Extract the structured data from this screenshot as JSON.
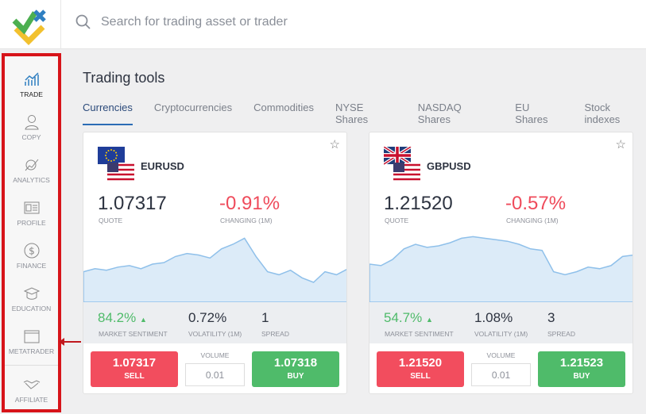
{
  "search": {
    "placeholder": "Search for trading asset or trader"
  },
  "sidebar": {
    "items": [
      {
        "label": "TRADE",
        "icon": "chart-icon",
        "active": true
      },
      {
        "label": "COPY",
        "icon": "person-icon"
      },
      {
        "label": "ANALYTICS",
        "icon": "analytics-icon"
      },
      {
        "label": "PROFILE",
        "icon": "id-card-icon"
      },
      {
        "label": "FINANCE",
        "icon": "dollar-icon"
      },
      {
        "label": "EDUCATION",
        "icon": "graduation-cap-icon"
      },
      {
        "label": "METATRADER",
        "icon": "window-icon"
      },
      {
        "label": "AFFILIATE",
        "icon": "handshake-icon"
      }
    ]
  },
  "main": {
    "title": "Trading tools",
    "tabs": [
      "Currencies",
      "Cryptocurrencies",
      "Commodities",
      "NYSE Shares",
      "NASDAQ Shares",
      "EU Shares",
      "Stock indexes"
    ]
  },
  "labels": {
    "quote": "QUOTE",
    "changing": "CHANGING (1M)",
    "sentiment": "MARKET SENTIMENT",
    "volatility": "VOLATILITY (1M)",
    "spread": "SPREAD",
    "volume": "VOLUME",
    "sell": "SELL",
    "buy": "BUY"
  },
  "cards": [
    {
      "pair": "EURUSD",
      "quote": "1.07317",
      "change": "-0.91%",
      "sentiment": "84.2%",
      "volatility": "0.72%",
      "spread": "1",
      "sell": "1.07317",
      "buy": "1.07318",
      "volume": "0.01",
      "spark": [
        40,
        42,
        41,
        43,
        44,
        42,
        45,
        46,
        50,
        52,
        51,
        49,
        55,
        58,
        62,
        50,
        40,
        38,
        41,
        36,
        33,
        40,
        38,
        42
      ]
    },
    {
      "pair": "GBPUSD",
      "quote": "1.21520",
      "change": "-0.57%",
      "sentiment": "54.7%",
      "volatility": "1.08%",
      "spread": "3",
      "sell": "1.21520",
      "buy": "1.21523",
      "volume": "0.01",
      "spark": [
        45,
        44,
        48,
        55,
        58,
        56,
        57,
        59,
        62,
        63,
        62,
        61,
        60,
        58,
        55,
        54,
        40,
        38,
        40,
        43,
        42,
        44,
        50,
        51
      ]
    }
  ],
  "colors": {
    "sell": "#f24d5e",
    "buy": "#4fbb6a",
    "negative": "#ef4b5b",
    "highlight": "#d7141a"
  }
}
